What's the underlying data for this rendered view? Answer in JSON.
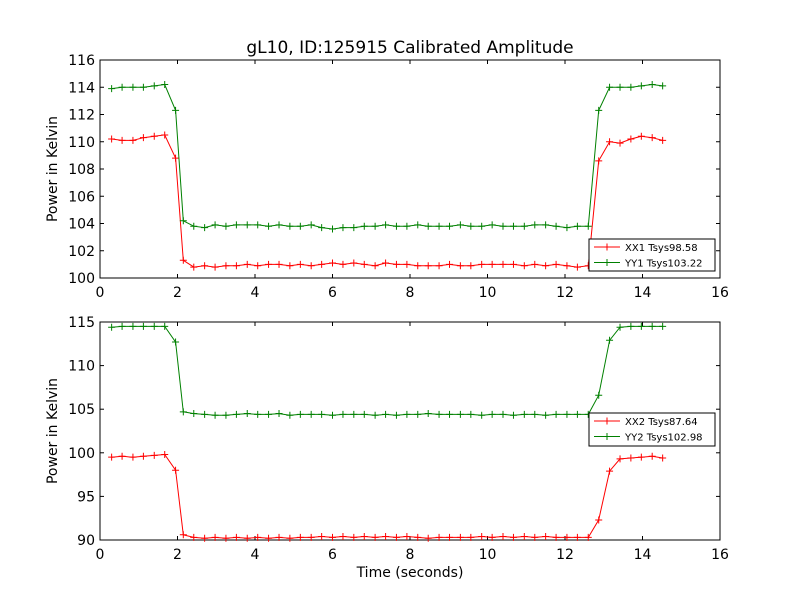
{
  "figure": {
    "title": "gL10, ID:125915 Calibrated Amplitude"
  },
  "chart_data": [
    {
      "type": "line",
      "title": "gL10, ID:125915 Calibrated Amplitude",
      "xlabel": "",
      "ylabel": "Power in Kelvin",
      "xlim": [
        0,
        16
      ],
      "ylim": [
        100,
        116
      ],
      "xticks": [
        0,
        2,
        4,
        6,
        8,
        10,
        12,
        14,
        16
      ],
      "yticks": [
        100,
        102,
        104,
        106,
        108,
        110,
        112,
        114,
        116
      ],
      "grid": false,
      "legend_position": "lower-right",
      "x": [
        0.3,
        0.57,
        0.85,
        1.12,
        1.4,
        1.67,
        1.95,
        2.15,
        2.42,
        2.7,
        2.97,
        3.25,
        3.52,
        3.8,
        4.07,
        4.35,
        4.62,
        4.9,
        5.17,
        5.45,
        5.72,
        6.0,
        6.27,
        6.55,
        6.82,
        7.1,
        7.37,
        7.65,
        7.92,
        8.2,
        8.47,
        8.75,
        9.02,
        9.3,
        9.57,
        9.85,
        10.12,
        10.4,
        10.67,
        10.95,
        11.22,
        11.5,
        11.77,
        12.05,
        12.32,
        12.6,
        12.87,
        13.15,
        13.42,
        13.7,
        13.97,
        14.25,
        14.52
      ],
      "series": [
        {
          "name": "XX1 Tsys98.58",
          "color": "#ff0000",
          "values": [
            110.2,
            110.1,
            110.1,
            110.3,
            110.4,
            110.5,
            108.8,
            101.3,
            100.8,
            100.9,
            100.8,
            100.9,
            100.9,
            101.0,
            100.9,
            101.0,
            101.0,
            100.9,
            101.0,
            100.9,
            101.0,
            101.1,
            101.0,
            101.1,
            101.0,
            100.9,
            101.1,
            101.0,
            101.0,
            100.9,
            100.9,
            100.9,
            101.0,
            100.9,
            100.9,
            101.0,
            101.0,
            101.0,
            101.0,
            100.9,
            101.0,
            100.9,
            101.0,
            100.9,
            100.8,
            100.9,
            108.6,
            110.0,
            109.9,
            110.2,
            110.4,
            110.3,
            110.1
          ]
        },
        {
          "name": "YY1 Tsys103.22",
          "color": "#008000",
          "values": [
            113.9,
            114.0,
            114.0,
            114.0,
            114.1,
            114.2,
            112.3,
            104.2,
            103.8,
            103.7,
            103.9,
            103.8,
            103.9,
            103.9,
            103.9,
            103.8,
            103.9,
            103.8,
            103.8,
            103.9,
            103.7,
            103.6,
            103.7,
            103.7,
            103.8,
            103.8,
            103.9,
            103.8,
            103.8,
            103.9,
            103.8,
            103.8,
            103.8,
            103.9,
            103.8,
            103.8,
            103.9,
            103.8,
            103.8,
            103.8,
            103.9,
            103.9,
            103.8,
            103.7,
            103.8,
            103.8,
            112.3,
            114.0,
            114.0,
            114.0,
            114.1,
            114.2,
            114.1
          ]
        }
      ]
    },
    {
      "type": "line",
      "title": "",
      "xlabel": "Time (seconds)",
      "ylabel": "Power in Kelvin",
      "xlim": [
        0,
        16
      ],
      "ylim": [
        90,
        115
      ],
      "xticks": [
        0,
        2,
        4,
        6,
        8,
        10,
        12,
        14,
        16
      ],
      "yticks": [
        90,
        95,
        100,
        105,
        110,
        115
      ],
      "grid": false,
      "legend_position": "right",
      "x": [
        0.3,
        0.57,
        0.85,
        1.12,
        1.4,
        1.67,
        1.95,
        2.15,
        2.42,
        2.7,
        2.97,
        3.25,
        3.52,
        3.8,
        4.07,
        4.35,
        4.62,
        4.9,
        5.17,
        5.45,
        5.72,
        6.0,
        6.27,
        6.55,
        6.82,
        7.1,
        7.37,
        7.65,
        7.92,
        8.2,
        8.47,
        8.75,
        9.02,
        9.3,
        9.57,
        9.85,
        10.12,
        10.4,
        10.67,
        10.95,
        11.22,
        11.5,
        11.77,
        12.05,
        12.32,
        12.6,
        12.87,
        13.15,
        13.42,
        13.7,
        13.97,
        14.25,
        14.52
      ],
      "series": [
        {
          "name": "XX2 Tsys87.64",
          "color": "#ff0000",
          "values": [
            99.5,
            99.6,
            99.5,
            99.6,
            99.7,
            99.8,
            98.0,
            90.6,
            90.3,
            90.2,
            90.3,
            90.2,
            90.3,
            90.2,
            90.3,
            90.2,
            90.3,
            90.2,
            90.3,
            90.3,
            90.4,
            90.3,
            90.4,
            90.3,
            90.4,
            90.3,
            90.4,
            90.3,
            90.4,
            90.3,
            90.2,
            90.3,
            90.3,
            90.3,
            90.3,
            90.4,
            90.3,
            90.4,
            90.3,
            90.4,
            90.3,
            90.4,
            90.3,
            90.3,
            90.3,
            90.3,
            92.3,
            97.9,
            99.3,
            99.4,
            99.5,
            99.6,
            99.4
          ]
        },
        {
          "name": "YY2 Tsys102.98",
          "color": "#008000",
          "values": [
            114.4,
            114.5,
            114.5,
            114.5,
            114.5,
            114.5,
            112.7,
            104.7,
            104.5,
            104.4,
            104.3,
            104.3,
            104.4,
            104.5,
            104.4,
            104.4,
            104.5,
            104.3,
            104.4,
            104.4,
            104.4,
            104.3,
            104.4,
            104.4,
            104.4,
            104.3,
            104.4,
            104.3,
            104.4,
            104.4,
            104.5,
            104.4,
            104.4,
            104.4,
            104.4,
            104.3,
            104.4,
            104.4,
            104.3,
            104.4,
            104.4,
            104.3,
            104.4,
            104.4,
            104.4,
            104.4,
            106.6,
            112.9,
            114.4,
            114.5,
            114.5,
            114.5,
            114.5
          ]
        }
      ]
    }
  ]
}
